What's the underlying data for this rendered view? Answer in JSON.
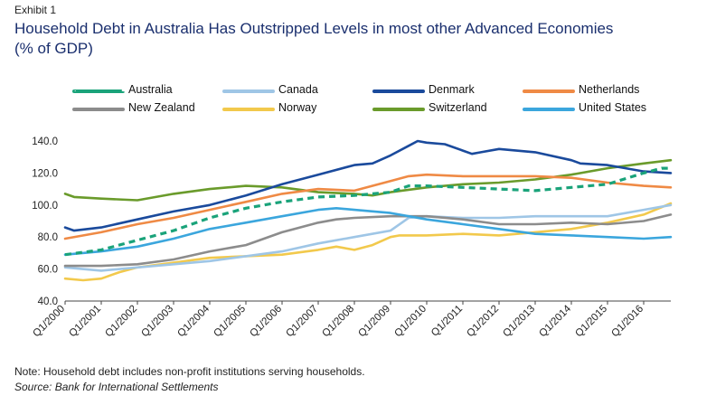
{
  "header": {
    "exhibit": "Exhibit 1",
    "title": "Household Debt in Australia Has Outstripped Levels in most other Advanced Economies",
    "subtitle": "(% of GDP)"
  },
  "footer": {
    "note": "Note: Household debt includes non-profit institutions serving households.",
    "source": "Source: Bank for International Settlements"
  },
  "chart_data": {
    "type": "line",
    "title": "Household Debt in Australia Has Outstripped Levels in most other Advanced Economies",
    "ylabel": "(% of GDP)",
    "xlabel": "",
    "ylim": [
      40,
      140
    ],
    "yticks": [
      "140.0",
      "120.0",
      "100.0",
      "80.0",
      "60.0",
      "40.0"
    ],
    "x_start_year": 2000,
    "quarters_per_year": 4,
    "xticks": [
      "Q1/2000",
      "Q1/2001",
      "Q1/2002",
      "Q1/2003",
      "Q1/2004",
      "Q1/2005",
      "Q1/2006",
      "Q1/2007",
      "Q1/2008",
      "Q1/2009",
      "Q1/2010",
      "Q1/2011",
      "Q1/2012",
      "Q1/2013",
      "Q1/2014",
      "Q1/2015",
      "Q1/2016"
    ],
    "grid": false,
    "legend_position": "top",
    "series": [
      {
        "name": "Australia",
        "color": "#1aa37a",
        "dashed": true,
        "anchors": [
          [
            0,
            69
          ],
          [
            4,
            72
          ],
          [
            8,
            78
          ],
          [
            12,
            84
          ],
          [
            16,
            92
          ],
          [
            20,
            98
          ],
          [
            24,
            102
          ],
          [
            28,
            105
          ],
          [
            32,
            106
          ],
          [
            34,
            107
          ],
          [
            36,
            108
          ],
          [
            38,
            112
          ],
          [
            40,
            112
          ],
          [
            44,
            111
          ],
          [
            48,
            110
          ],
          [
            52,
            109
          ],
          [
            56,
            111
          ],
          [
            60,
            113
          ],
          [
            64,
            120
          ],
          [
            66,
            123
          ],
          [
            67,
            123
          ]
        ]
      },
      {
        "name": "Canada",
        "color": "#9fc6e6",
        "dashed": false,
        "anchors": [
          [
            0,
            61
          ],
          [
            4,
            59
          ],
          [
            8,
            61
          ],
          [
            12,
            63
          ],
          [
            16,
            65
          ],
          [
            20,
            68
          ],
          [
            24,
            71
          ],
          [
            28,
            76
          ],
          [
            32,
            80
          ],
          [
            36,
            84
          ],
          [
            38,
            92
          ],
          [
            40,
            93
          ],
          [
            44,
            92
          ],
          [
            48,
            92
          ],
          [
            52,
            93
          ],
          [
            56,
            93
          ],
          [
            60,
            93
          ],
          [
            64,
            97
          ],
          [
            67,
            100
          ]
        ]
      },
      {
        "name": "Denmark",
        "color": "#1a4a9c",
        "dashed": false,
        "anchors": [
          [
            0,
            86
          ],
          [
            1,
            84
          ],
          [
            4,
            86
          ],
          [
            8,
            91
          ],
          [
            12,
            96
          ],
          [
            16,
            100
          ],
          [
            20,
            106
          ],
          [
            24,
            113
          ],
          [
            28,
            119
          ],
          [
            32,
            125
          ],
          [
            34,
            126
          ],
          [
            36,
            131
          ],
          [
            38,
            137
          ],
          [
            39,
            140
          ],
          [
            40,
            139
          ],
          [
            42,
            138
          ],
          [
            44,
            134
          ],
          [
            45,
            132
          ],
          [
            46,
            133
          ],
          [
            48,
            135
          ],
          [
            52,
            133
          ],
          [
            56,
            128
          ],
          [
            57,
            126
          ],
          [
            60,
            125
          ],
          [
            64,
            121
          ],
          [
            67,
            120
          ]
        ]
      },
      {
        "name": "Netherlands",
        "color": "#ef8a45",
        "dashed": false,
        "anchors": [
          [
            0,
            79
          ],
          [
            4,
            83
          ],
          [
            8,
            88
          ],
          [
            12,
            92
          ],
          [
            16,
            97
          ],
          [
            20,
            102
          ],
          [
            24,
            107
          ],
          [
            28,
            110
          ],
          [
            32,
            109
          ],
          [
            36,
            115
          ],
          [
            38,
            118
          ],
          [
            40,
            119
          ],
          [
            44,
            118
          ],
          [
            48,
            118
          ],
          [
            52,
            118
          ],
          [
            56,
            117
          ],
          [
            60,
            114
          ],
          [
            64,
            112
          ],
          [
            67,
            111
          ]
        ]
      },
      {
        "name": "New Zealand",
        "color": "#8c8c8c",
        "dashed": false,
        "anchors": [
          [
            0,
            62
          ],
          [
            4,
            62
          ],
          [
            8,
            63
          ],
          [
            12,
            66
          ],
          [
            16,
            71
          ],
          [
            20,
            75
          ],
          [
            24,
            83
          ],
          [
            28,
            89
          ],
          [
            30,
            91
          ],
          [
            32,
            92
          ],
          [
            36,
            93
          ],
          [
            40,
            93
          ],
          [
            44,
            91
          ],
          [
            48,
            88
          ],
          [
            52,
            88
          ],
          [
            56,
            89
          ],
          [
            60,
            88
          ],
          [
            64,
            90
          ],
          [
            67,
            94
          ]
        ]
      },
      {
        "name": "Norway",
        "color": "#f2c94c",
        "dashed": false,
        "anchors": [
          [
            0,
            54
          ],
          [
            2,
            53
          ],
          [
            4,
            54
          ],
          [
            6,
            58
          ],
          [
            8,
            61
          ],
          [
            12,
            64
          ],
          [
            16,
            67
          ],
          [
            20,
            68
          ],
          [
            24,
            69
          ],
          [
            28,
            72
          ],
          [
            30,
            74
          ],
          [
            32,
            72
          ],
          [
            34,
            75
          ],
          [
            36,
            80
          ],
          [
            37,
            81
          ],
          [
            40,
            81
          ],
          [
            44,
            82
          ],
          [
            48,
            81
          ],
          [
            52,
            83
          ],
          [
            56,
            85
          ],
          [
            60,
            89
          ],
          [
            64,
            94
          ],
          [
            67,
            101
          ]
        ]
      },
      {
        "name": "Switzerland",
        "color": "#6a9b2b",
        "dashed": false,
        "anchors": [
          [
            0,
            107
          ],
          [
            1,
            105
          ],
          [
            4,
            104
          ],
          [
            8,
            103
          ],
          [
            12,
            107
          ],
          [
            16,
            110
          ],
          [
            20,
            112
          ],
          [
            24,
            111
          ],
          [
            28,
            108
          ],
          [
            32,
            107
          ],
          [
            34,
            106
          ],
          [
            36,
            108
          ],
          [
            40,
            111
          ],
          [
            44,
            113
          ],
          [
            48,
            114
          ],
          [
            52,
            116
          ],
          [
            56,
            119
          ],
          [
            60,
            123
          ],
          [
            64,
            126
          ],
          [
            67,
            128
          ]
        ]
      },
      {
        "name": "United States",
        "color": "#3ba6dd",
        "dashed": false,
        "anchors": [
          [
            0,
            69
          ],
          [
            4,
            71
          ],
          [
            8,
            74
          ],
          [
            12,
            79
          ],
          [
            16,
            85
          ],
          [
            20,
            89
          ],
          [
            24,
            93
          ],
          [
            28,
            97
          ],
          [
            30,
            98
          ],
          [
            32,
            97
          ],
          [
            36,
            95
          ],
          [
            40,
            91
          ],
          [
            44,
            88
          ],
          [
            48,
            85
          ],
          [
            52,
            82
          ],
          [
            56,
            81
          ],
          [
            60,
            80
          ],
          [
            64,
            79
          ],
          [
            67,
            80
          ]
        ]
      }
    ]
  }
}
